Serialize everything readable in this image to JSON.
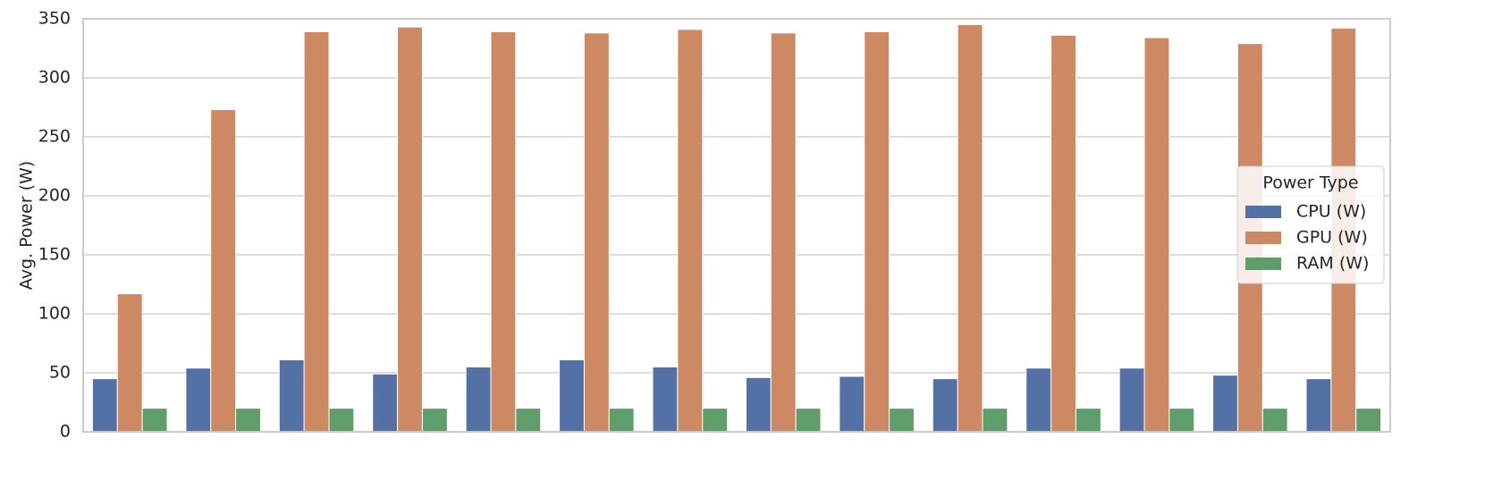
{
  "chart_data": {
    "type": "bar",
    "y_label": "Avg. Power (W)",
    "categories": [
      null,
      null,
      null,
      null,
      null,
      null,
      null,
      null,
      null,
      null,
      null,
      null,
      null,
      null
    ],
    "series": [
      {
        "name": "CPU (W)",
        "color": "#5471a5",
        "values": [
          45,
          54,
          61,
          49,
          55,
          61,
          55,
          46,
          47,
          45,
          54,
          54,
          48,
          45
        ]
      },
      {
        "name": "GPU (W)",
        "color": "#cc8963",
        "values": [
          117,
          273,
          339,
          343,
          339,
          338,
          341,
          338,
          339,
          345,
          336,
          334,
          329,
          342
        ]
      },
      {
        "name": "RAM (W)",
        "color": "#5d9e6b",
        "values": [
          20,
          20,
          20,
          20,
          20,
          20,
          20,
          20,
          20,
          20,
          20,
          20,
          20,
          20
        ]
      }
    ],
    "ylim": [
      0,
      350
    ],
    "yticks": [
      0,
      50,
      100,
      150,
      200,
      250,
      300,
      350
    ],
    "grid": true,
    "legend": {
      "title": "Power Type",
      "position": "right"
    }
  }
}
